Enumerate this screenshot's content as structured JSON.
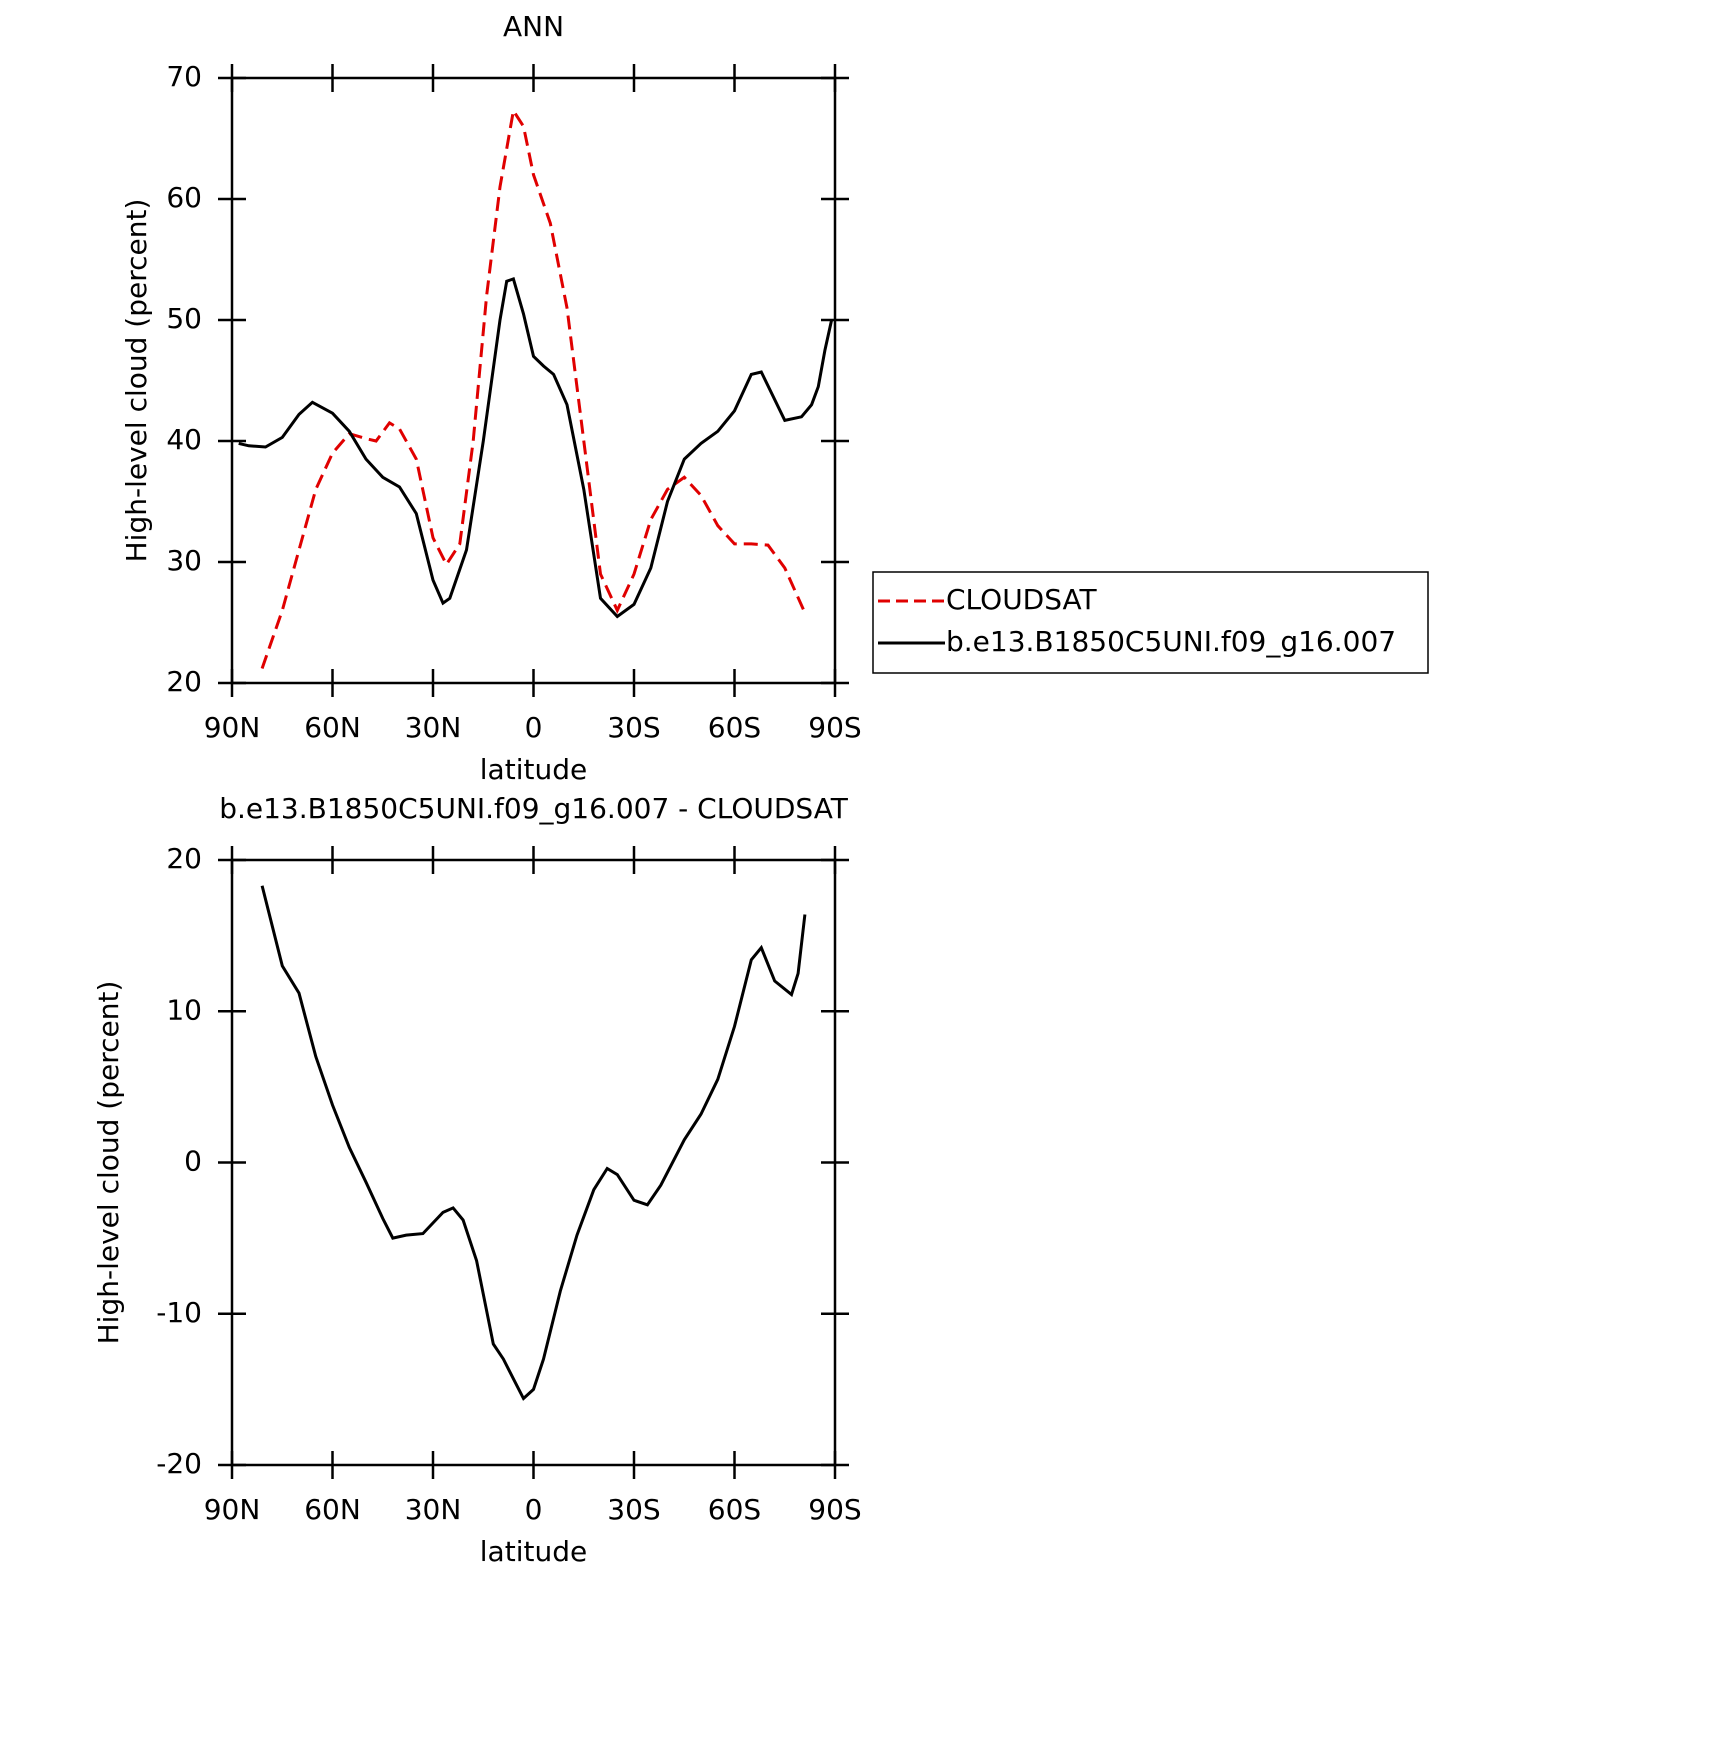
{
  "chart_data": [
    {
      "type": "line",
      "title": "ANN",
      "ylabel": "High-level cloud (percent)",
      "xlabel": "latitude",
      "xlim": [
        90,
        -90
      ],
      "xticks": [
        {
          "value": 90,
          "label": "90N"
        },
        {
          "value": 60,
          "label": "60N"
        },
        {
          "value": 30,
          "label": "30N"
        },
        0,
        {
          "value": -30,
          "label": "30S"
        },
        {
          "value": -60,
          "label": "60S"
        },
        {
          "value": -90,
          "label": "90S"
        }
      ],
      "ylim": [
        20,
        70
      ],
      "yticks": [
        20,
        30,
        40,
        50,
        60,
        70
      ],
      "legend": "right",
      "series": [
        {
          "name": "CLOUDSAT",
          "color": "#e00000",
          "line_style": "dashed",
          "x": [
            81,
            75,
            70,
            65,
            60,
            55,
            50,
            47,
            43,
            40,
            35,
            30,
            26,
            22,
            18,
            14,
            10,
            6,
            3,
            0,
            -5,
            -10,
            -15,
            -20,
            -25,
            -30,
            -35,
            -40,
            -45,
            -50,
            -55,
            -60,
            -65,
            -70,
            -75,
            -81
          ],
          "values": [
            21.2,
            26,
            31,
            36,
            39,
            40.6,
            40.2,
            40,
            41.5,
            41,
            38.5,
            32,
            29.8,
            31.5,
            40,
            52,
            61,
            67.3,
            66,
            62,
            58,
            51,
            40,
            29,
            26,
            29,
            33.5,
            36,
            37,
            35.5,
            33,
            31.5,
            31.5,
            31.4,
            29.5,
            25.8
          ]
        },
        {
          "name": "b.e13.B1850C5UNI.f09_g16.007",
          "color": "#000000",
          "line_style": "solid",
          "x": [
            88,
            85,
            80,
            75,
            70,
            66,
            60,
            55,
            50,
            45,
            40,
            35,
            30,
            27,
            25,
            20,
            15,
            10,
            8,
            6,
            3,
            0,
            -3,
            -6,
            -10,
            -15,
            -20,
            -25,
            -30,
            -35,
            -40,
            -45,
            -50,
            -55,
            -60,
            -65,
            -68,
            -75,
            -80,
            -83,
            -85,
            -87,
            -89
          ],
          "values": [
            39.8,
            39.6,
            39.5,
            40.3,
            42.2,
            43.2,
            42.3,
            40.8,
            38.5,
            37,
            36.2,
            34,
            28.5,
            26.6,
            27,
            31,
            40,
            50,
            53.2,
            53.4,
            50.5,
            47,
            46.2,
            45.5,
            43,
            36,
            27,
            25.5,
            26.5,
            29.5,
            35,
            38.5,
            39.8,
            40.8,
            42.5,
            45.5,
            45.7,
            41.7,
            42,
            43,
            44.5,
            47.5,
            50
          ]
        }
      ]
    },
    {
      "type": "line",
      "title": "b.e13.B1850C5UNI.f09_g16.007 - CLOUDSAT",
      "ylabel": "High-level cloud (percent)",
      "xlabel": "latitude",
      "xlim": [
        90,
        -90
      ],
      "xticks": [
        {
          "value": 90,
          "label": "90N"
        },
        {
          "value": 60,
          "label": "60N"
        },
        {
          "value": 30,
          "label": "30N"
        },
        0,
        {
          "value": -30,
          "label": "30S"
        },
        {
          "value": -60,
          "label": "60S"
        },
        {
          "value": -90,
          "label": "90S"
        }
      ],
      "ylim": [
        -20,
        20
      ],
      "yticks": [
        -20,
        -10,
        0,
        10,
        20
      ],
      "series": [
        {
          "color": "#000000",
          "line_style": "solid",
          "x": [
            81,
            75,
            70,
            65,
            60,
            55,
            50,
            45,
            42,
            38,
            33,
            27,
            24,
            21,
            17,
            12,
            9,
            6,
            3,
            0,
            -3,
            -8,
            -13,
            -18,
            -22,
            -25,
            -30,
            -34,
            -38,
            -45,
            -50,
            -55,
            -60,
            -65,
            -68,
            -72,
            -77,
            -79,
            -81
          ],
          "values": [
            18.3,
            13,
            11.2,
            7,
            3.8,
            1,
            -1.3,
            -3.7,
            -5,
            -4.8,
            -4.7,
            -3.3,
            -3,
            -3.8,
            -6.5,
            -12,
            -13,
            -14.3,
            -15.6,
            -15,
            -13,
            -8.5,
            -4.8,
            -1.8,
            -0.4,
            -0.8,
            -2.5,
            -2.8,
            -1.5,
            1.5,
            3.2,
            5.5,
            9,
            13.4,
            14.2,
            12,
            11.1,
            12.5,
            16.4
          ]
        }
      ]
    }
  ]
}
